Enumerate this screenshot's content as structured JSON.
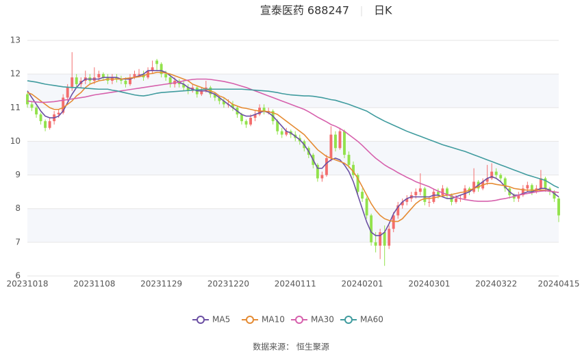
{
  "chart_data": {
    "type": "candlestick",
    "title": "宣泰医药 688247",
    "period": "日K",
    "source": "数据来源： 恒生聚源",
    "up_color": "#f36e6e",
    "down_color": "#92e24c",
    "ylim": [
      6,
      13
    ],
    "yticks": [
      6,
      7,
      8,
      9,
      10,
      11,
      12,
      13
    ],
    "grid": true,
    "legend": "bottom",
    "categories": [
      "20231018",
      null,
      null,
      null,
      null,
      null,
      null,
      null,
      null,
      null,
      null,
      null,
      null,
      null,
      null,
      "20231108",
      null,
      null,
      null,
      null,
      null,
      null,
      null,
      null,
      null,
      null,
      null,
      null,
      null,
      null,
      "20231129",
      null,
      null,
      null,
      null,
      null,
      null,
      null,
      null,
      null,
      null,
      null,
      null,
      null,
      null,
      "20231220",
      null,
      null,
      null,
      null,
      null,
      null,
      null,
      null,
      null,
      null,
      null,
      null,
      null,
      null,
      "20240111",
      null,
      null,
      null,
      null,
      null,
      null,
      null,
      null,
      null,
      null,
      null,
      null,
      null,
      null,
      "20240201",
      null,
      null,
      null,
      null,
      null,
      null,
      null,
      null,
      null,
      null,
      null,
      null,
      null,
      null,
      "20240301",
      null,
      null,
      null,
      null,
      null,
      null,
      null,
      null,
      null,
      null,
      null,
      null,
      null,
      null,
      "20240322",
      null,
      null,
      null,
      null,
      null,
      null,
      null,
      null,
      null,
      null,
      null,
      null,
      null,
      "20240415"
    ],
    "ohlc": [
      [
        11.4,
        11.1,
        11.0,
        11.45
      ],
      [
        11.1,
        11.0,
        10.9,
        11.2
      ],
      [
        11.0,
        10.8,
        10.7,
        11.05
      ],
      [
        10.8,
        10.6,
        10.5,
        10.85
      ],
      [
        10.6,
        10.4,
        10.3,
        10.65
      ],
      [
        10.4,
        10.6,
        10.35,
        10.7
      ],
      [
        10.6,
        10.8,
        10.5,
        10.9
      ],
      [
        10.8,
        10.85,
        10.7,
        10.95
      ],
      [
        10.85,
        11.3,
        10.8,
        11.4
      ],
      [
        11.3,
        11.6,
        11.2,
        11.7
      ],
      [
        11.6,
        11.9,
        11.5,
        12.65
      ],
      [
        11.9,
        11.7,
        11.6,
        12.0
      ],
      [
        11.7,
        11.8,
        11.6,
        11.9
      ],
      [
        11.8,
        11.9,
        11.7,
        12.1
      ],
      [
        11.9,
        11.8,
        11.7,
        12.0
      ],
      [
        11.8,
        11.9,
        11.7,
        12.2
      ],
      [
        11.9,
        12.0,
        11.8,
        12.1
      ],
      [
        12.0,
        11.9,
        11.8,
        12.05
      ],
      [
        11.9,
        11.8,
        11.7,
        12.0
      ],
      [
        11.8,
        11.9,
        11.7,
        12.0
      ],
      [
        11.9,
        11.85,
        11.75,
        12.0
      ],
      [
        11.85,
        11.8,
        11.7,
        11.95
      ],
      [
        11.8,
        11.7,
        11.6,
        11.9
      ],
      [
        11.7,
        11.9,
        11.65,
        12.0
      ],
      [
        11.9,
        12.0,
        11.85,
        12.1
      ],
      [
        12.0,
        12.0,
        11.9,
        12.15
      ],
      [
        12.0,
        11.9,
        11.8,
        12.1
      ],
      [
        11.9,
        12.1,
        11.85,
        12.2
      ],
      [
        12.1,
        12.2,
        12.0,
        12.4
      ],
      [
        12.4,
        12.3,
        12.1,
        12.45
      ],
      [
        12.3,
        12.0,
        11.9,
        12.35
      ],
      [
        12.0,
        11.9,
        11.8,
        12.1
      ],
      [
        11.9,
        11.7,
        11.6,
        12.0
      ],
      [
        11.7,
        11.8,
        11.6,
        11.9
      ],
      [
        11.8,
        11.7,
        11.6,
        11.85
      ],
      [
        11.7,
        11.6,
        11.5,
        11.8
      ],
      [
        11.6,
        11.5,
        11.4,
        11.7
      ],
      [
        11.5,
        11.6,
        11.45,
        11.7
      ],
      [
        11.6,
        11.4,
        11.3,
        11.65
      ],
      [
        11.4,
        11.5,
        11.35,
        11.6
      ],
      [
        11.5,
        11.6,
        11.45,
        11.8
      ],
      [
        11.6,
        11.4,
        11.3,
        11.65
      ],
      [
        11.4,
        11.3,
        11.2,
        11.45
      ],
      [
        11.3,
        11.2,
        11.1,
        11.35
      ],
      [
        11.2,
        11.1,
        11.0,
        11.3
      ],
      [
        11.1,
        11.1,
        11.0,
        11.25
      ],
      [
        11.1,
        11.0,
        10.9,
        11.2
      ],
      [
        11.0,
        10.8,
        10.7,
        11.05
      ],
      [
        10.8,
        10.6,
        10.5,
        10.85
      ],
      [
        10.6,
        10.5,
        10.4,
        10.65
      ],
      [
        10.5,
        10.7,
        10.45,
        10.8
      ],
      [
        10.7,
        10.8,
        10.6,
        10.9
      ],
      [
        10.8,
        11.0,
        10.75,
        11.1
      ],
      [
        11.0,
        10.9,
        10.8,
        11.1
      ],
      [
        10.9,
        10.9,
        10.8,
        11.0
      ],
      [
        10.9,
        10.6,
        10.5,
        10.95
      ],
      [
        10.6,
        10.3,
        10.2,
        10.65
      ],
      [
        10.3,
        10.2,
        10.1,
        10.4
      ],
      [
        10.2,
        10.3,
        10.15,
        10.4
      ],
      [
        10.3,
        10.2,
        10.1,
        10.35
      ],
      [
        10.2,
        10.1,
        10.0,
        10.3
      ],
      [
        10.1,
        10.0,
        9.9,
        10.2
      ],
      [
        10.0,
        9.8,
        9.7,
        10.05
      ],
      [
        9.8,
        9.6,
        9.5,
        9.85
      ],
      [
        9.6,
        9.3,
        9.2,
        9.65
      ],
      [
        9.3,
        8.9,
        8.8,
        9.35
      ],
      [
        8.9,
        9.0,
        8.8,
        9.1
      ],
      [
        9.0,
        9.5,
        8.95,
        9.6
      ],
      [
        9.5,
        10.2,
        9.4,
        10.45
      ],
      [
        10.2,
        9.8,
        9.7,
        10.3
      ],
      [
        9.8,
        10.3,
        9.75,
        10.4
      ],
      [
        10.3,
        9.6,
        9.5,
        10.35
      ],
      [
        9.6,
        9.3,
        9.2,
        9.7
      ],
      [
        9.3,
        9.0,
        8.9,
        9.4
      ],
      [
        9.0,
        8.5,
        8.4,
        9.05
      ],
      [
        8.5,
        8.3,
        8.2,
        8.6
      ],
      [
        8.3,
        7.8,
        7.7,
        8.35
      ],
      [
        7.8,
        7.0,
        6.9,
        7.85
      ],
      [
        7.0,
        6.9,
        6.7,
        7.3
      ],
      [
        6.9,
        7.3,
        6.5,
        7.4
      ],
      [
        7.3,
        6.9,
        6.3,
        7.5
      ],
      [
        6.9,
        7.4,
        6.8,
        7.5
      ],
      [
        7.4,
        7.8,
        7.3,
        7.9
      ],
      [
        7.8,
        8.1,
        7.7,
        8.2
      ],
      [
        8.1,
        8.2,
        8.0,
        8.3
      ],
      [
        8.2,
        8.3,
        8.1,
        8.4
      ],
      [
        8.3,
        8.4,
        8.2,
        8.5
      ],
      [
        8.4,
        8.5,
        8.3,
        8.6
      ],
      [
        8.5,
        8.6,
        8.4,
        9.05
      ],
      [
        8.6,
        8.2,
        8.1,
        8.65
      ],
      [
        8.2,
        8.2,
        8.05,
        8.35
      ],
      [
        8.2,
        8.5,
        8.15,
        8.6
      ],
      [
        8.5,
        8.4,
        8.3,
        8.6
      ],
      [
        8.4,
        8.6,
        8.35,
        8.7
      ],
      [
        8.6,
        8.4,
        8.3,
        8.65
      ],
      [
        8.4,
        8.2,
        8.1,
        8.45
      ],
      [
        8.2,
        8.3,
        8.15,
        8.4
      ],
      [
        8.3,
        8.3,
        8.2,
        8.4
      ],
      [
        8.3,
        8.6,
        8.25,
        8.7
      ],
      [
        8.6,
        8.5,
        8.4,
        8.65
      ],
      [
        8.5,
        8.8,
        8.45,
        9.2
      ],
      [
        8.8,
        8.6,
        8.5,
        8.85
      ],
      [
        8.6,
        8.8,
        8.55,
        8.9
      ],
      [
        8.8,
        8.9,
        8.7,
        9.3
      ],
      [
        8.9,
        9.1,
        8.85,
        9.35
      ],
      [
        9.1,
        9.0,
        8.9,
        9.2
      ],
      [
        9.0,
        8.9,
        8.8,
        9.05
      ],
      [
        8.9,
        8.6,
        8.5,
        8.95
      ],
      [
        8.6,
        8.4,
        8.3,
        8.65
      ],
      [
        8.4,
        8.3,
        8.2,
        8.45
      ],
      [
        8.3,
        8.4,
        8.2,
        8.5
      ],
      [
        8.4,
        8.6,
        8.35,
        8.7
      ],
      [
        8.6,
        8.7,
        8.5,
        8.8
      ],
      [
        8.7,
        8.5,
        8.4,
        8.75
      ],
      [
        8.5,
        8.6,
        8.45,
        8.7
      ],
      [
        8.6,
        8.9,
        8.55,
        9.15
      ],
      [
        8.9,
        8.6,
        8.5,
        8.95
      ],
      [
        8.6,
        8.5,
        8.4,
        8.65
      ],
      [
        8.5,
        8.3,
        8.2,
        8.55
      ],
      [
        8.3,
        7.8,
        7.6,
        8.35
      ]
    ],
    "series": [
      {
        "name": "MA5",
        "color": "#6b4fa3",
        "values": [
          11.5,
          11.3,
          11.1,
          10.9,
          10.75,
          10.7,
          10.7,
          10.75,
          10.9,
          11.15,
          11.4,
          11.6,
          11.75,
          11.85,
          11.85,
          11.85,
          11.85,
          11.9,
          11.9,
          11.9,
          11.9,
          11.85,
          11.85,
          11.85,
          11.9,
          11.95,
          12.0,
          12.1,
          12.1,
          12.1,
          12.1,
          12.05,
          11.95,
          11.85,
          11.75,
          11.7,
          11.6,
          11.55,
          11.5,
          11.5,
          11.5,
          11.45,
          11.4,
          11.3,
          11.2,
          11.1,
          11.0,
          10.9,
          10.8,
          10.75,
          10.75,
          10.8,
          10.85,
          10.9,
          10.85,
          10.75,
          10.6,
          10.45,
          10.3,
          10.25,
          10.15,
          10.05,
          9.9,
          9.7,
          9.45,
          9.2,
          9.2,
          9.35,
          9.45,
          9.5,
          9.45,
          9.3,
          9.1,
          8.8,
          8.4,
          8.0,
          7.6,
          7.3,
          7.2,
          7.2,
          7.3,
          7.55,
          7.85,
          8.05,
          8.2,
          8.3,
          8.35,
          8.35,
          8.35,
          8.35,
          8.35,
          8.4,
          8.4,
          8.35,
          8.3,
          8.3,
          8.35,
          8.4,
          8.45,
          8.5,
          8.6,
          8.7,
          8.8,
          8.9,
          8.95,
          8.9,
          8.8,
          8.65,
          8.5,
          8.4,
          8.4,
          8.45,
          8.5,
          8.5,
          8.55,
          8.6,
          8.6,
          8.55,
          8.45,
          8.35
        ]
      },
      {
        "name": "MA10",
        "color": "#e58b33",
        "values": [
          11.45,
          11.4,
          11.3,
          11.2,
          11.1,
          11.0,
          10.95,
          10.95,
          11.0,
          11.1,
          11.2,
          11.35,
          11.45,
          11.6,
          11.7,
          11.75,
          11.8,
          11.82,
          11.85,
          11.85,
          11.85,
          11.85,
          11.87,
          11.88,
          11.9,
          11.92,
          11.95,
          12.0,
          12.02,
          12.05,
          12.05,
          12.03,
          12.0,
          11.95,
          11.9,
          11.85,
          11.8,
          11.7,
          11.65,
          11.6,
          11.55,
          11.5,
          11.45,
          11.35,
          11.3,
          11.2,
          11.1,
          11.05,
          11.0,
          10.98,
          10.95,
          10.92,
          10.9,
          10.9,
          10.88,
          10.85,
          10.8,
          10.7,
          10.6,
          10.5,
          10.4,
          10.3,
          10.2,
          10.05,
          9.9,
          9.75,
          9.65,
          9.55,
          9.5,
          9.45,
          9.4,
          9.35,
          9.25,
          9.1,
          8.9,
          8.65,
          8.4,
          8.15,
          7.95,
          7.8,
          7.7,
          7.65,
          7.62,
          7.62,
          7.7,
          7.85,
          8.0,
          8.15,
          8.25,
          8.3,
          8.3,
          8.32,
          8.35,
          8.38,
          8.4,
          8.42,
          8.45,
          8.48,
          8.5,
          8.55,
          8.6,
          8.65,
          8.7,
          8.75,
          8.75,
          8.72,
          8.7,
          8.68,
          8.65,
          8.6,
          8.58,
          8.56,
          8.55,
          8.55,
          8.55,
          8.55,
          8.55,
          8.52,
          8.5,
          8.48
        ]
      },
      {
        "name": "MA30",
        "color": "#d660ac",
        "values": [
          11.2,
          11.18,
          11.17,
          11.16,
          11.16,
          11.17,
          11.18,
          11.2,
          11.22,
          11.24,
          11.26,
          11.28,
          11.3,
          11.32,
          11.35,
          11.38,
          11.4,
          11.42,
          11.44,
          11.46,
          11.48,
          11.5,
          11.52,
          11.54,
          11.56,
          11.58,
          11.6,
          11.62,
          11.64,
          11.66,
          11.68,
          11.7,
          11.72,
          11.74,
          11.76,
          11.8,
          11.82,
          11.84,
          11.85,
          11.85,
          11.85,
          11.84,
          11.82,
          11.8,
          11.78,
          11.75,
          11.72,
          11.68,
          11.64,
          11.6,
          11.55,
          11.5,
          11.45,
          11.4,
          11.35,
          11.3,
          11.25,
          11.2,
          11.15,
          11.1,
          11.05,
          11.0,
          10.95,
          10.88,
          10.8,
          10.72,
          10.65,
          10.58,
          10.5,
          10.45,
          10.38,
          10.3,
          10.2,
          10.1,
          10.0,
          9.88,
          9.75,
          9.62,
          9.5,
          9.4,
          9.3,
          9.22,
          9.15,
          9.07,
          9.0,
          8.93,
          8.87,
          8.8,
          8.75,
          8.7,
          8.65,
          8.58,
          8.52,
          8.47,
          8.42,
          8.37,
          8.33,
          8.3,
          8.27,
          8.25,
          8.23,
          8.22,
          8.22,
          8.22,
          8.23,
          8.25,
          8.28,
          8.3,
          8.33,
          8.36,
          8.4,
          8.43,
          8.45,
          8.47,
          8.5,
          8.52,
          8.53,
          8.52,
          8.5,
          8.48
        ]
      },
      {
        "name": "MA60",
        "color": "#3f9b9e",
        "values": [
          11.8,
          11.78,
          11.76,
          11.73,
          11.7,
          11.68,
          11.66,
          11.64,
          11.62,
          11.61,
          11.6,
          11.6,
          11.59,
          11.58,
          11.57,
          11.56,
          11.55,
          11.55,
          11.55,
          11.52,
          11.5,
          11.47,
          11.44,
          11.41,
          11.38,
          11.36,
          11.35,
          11.37,
          11.4,
          11.43,
          11.45,
          11.46,
          11.47,
          11.48,
          11.49,
          11.5,
          11.51,
          11.52,
          11.53,
          11.54,
          11.55,
          11.55,
          11.55,
          11.55,
          11.55,
          11.55,
          11.55,
          11.55,
          11.55,
          11.54,
          11.53,
          11.52,
          11.51,
          11.5,
          11.49,
          11.47,
          11.45,
          11.42,
          11.4,
          11.38,
          11.37,
          11.36,
          11.35,
          11.35,
          11.34,
          11.32,
          11.3,
          11.27,
          11.24,
          11.22,
          11.18,
          11.14,
          11.1,
          11.05,
          11.0,
          10.95,
          10.9,
          10.82,
          10.74,
          10.67,
          10.6,
          10.54,
          10.48,
          10.42,
          10.36,
          10.3,
          10.25,
          10.2,
          10.15,
          10.1,
          10.05,
          10.0,
          9.95,
          9.9,
          9.86,
          9.82,
          9.78,
          9.74,
          9.7,
          9.65,
          9.6,
          9.55,
          9.5,
          9.45,
          9.4,
          9.35,
          9.3,
          9.25,
          9.2,
          9.15,
          9.1,
          9.05,
          9.0,
          8.96,
          8.92,
          8.88,
          8.84,
          8.76,
          8.68,
          8.62
        ]
      }
    ]
  }
}
